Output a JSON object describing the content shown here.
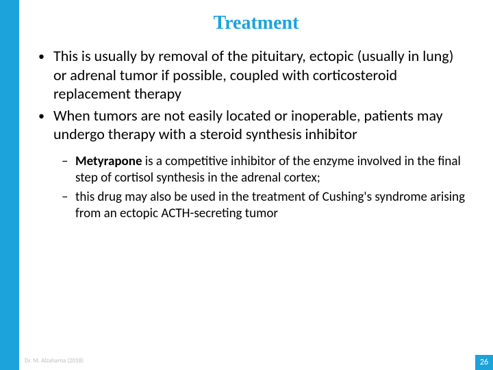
{
  "colors": {
    "accent": "#1ca3dc",
    "text": "#000000",
    "background": "#ffffff",
    "muted": "#bfbfbf"
  },
  "title": "Treatment",
  "bullets": [
    "This is usually by removal of the pituitary, ectopic (usually in lung) or adrenal tumor if possible, coupled with corticosteroid replacement therapy",
    "When tumors are not easily located or inoperable, patients may undergo therapy with a steroid synthesis inhibitor"
  ],
  "sub_bullets": [
    {
      "bold": "Metyrapone",
      "rest": " is a competitive inhibitor of the enzyme involved in the final step of cortisol synthesis in the adrenal cortex;"
    },
    {
      "bold": "",
      "rest": "this drug may also be used in the treatment of Cushing's syndrome arising from an ectopic ACTH-secreting tumor"
    }
  ],
  "footer": "Dr. M. Alzaharna (2018)",
  "page_number": "26",
  "markers": {
    "l1": "•",
    "l2": "–"
  },
  "typography": {
    "title_fontsize": 28,
    "body_fontsize": 22,
    "sub_fontsize": 19,
    "footer_fontsize": 9,
    "pagenum_fontsize": 12
  }
}
